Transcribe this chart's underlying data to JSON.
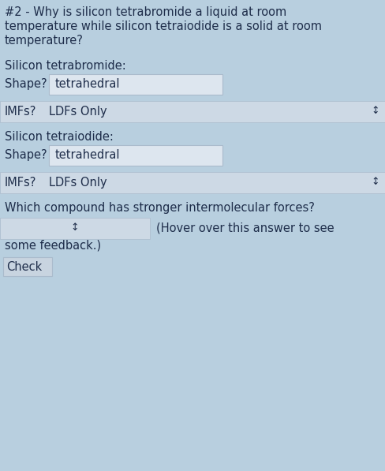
{
  "bg_color": "#b8cfdf",
  "title_lines": [
    "#2 - Why is silicon tetrabromide a liquid at room",
    "temperature while silicon tetraiodide is a solid at room",
    "temperature?"
  ],
  "section1_label": "Silicon tetrabromide:",
  "section2_label": "Silicon tetraiodide:",
  "shape_label": "Shape?",
  "imfs_label": "IMFs?",
  "shape_value": "tetrahedral",
  "imfs_value": "LDFs Only",
  "which_label": "Which compound has stronger intermolecular forces?",
  "hover_text": "(Hover over this answer to see",
  "feedback_text": "some feedback.)",
  "check_text": "Check",
  "text_color": "#1e2d4a",
  "white_box_color": "#dde6ef",
  "imf_box_color": "#cdd9e5",
  "check_box_color": "#c8d4e0",
  "box_border": "#aabbcc",
  "title_fontsize": 10.5,
  "label_fontsize": 10.5
}
